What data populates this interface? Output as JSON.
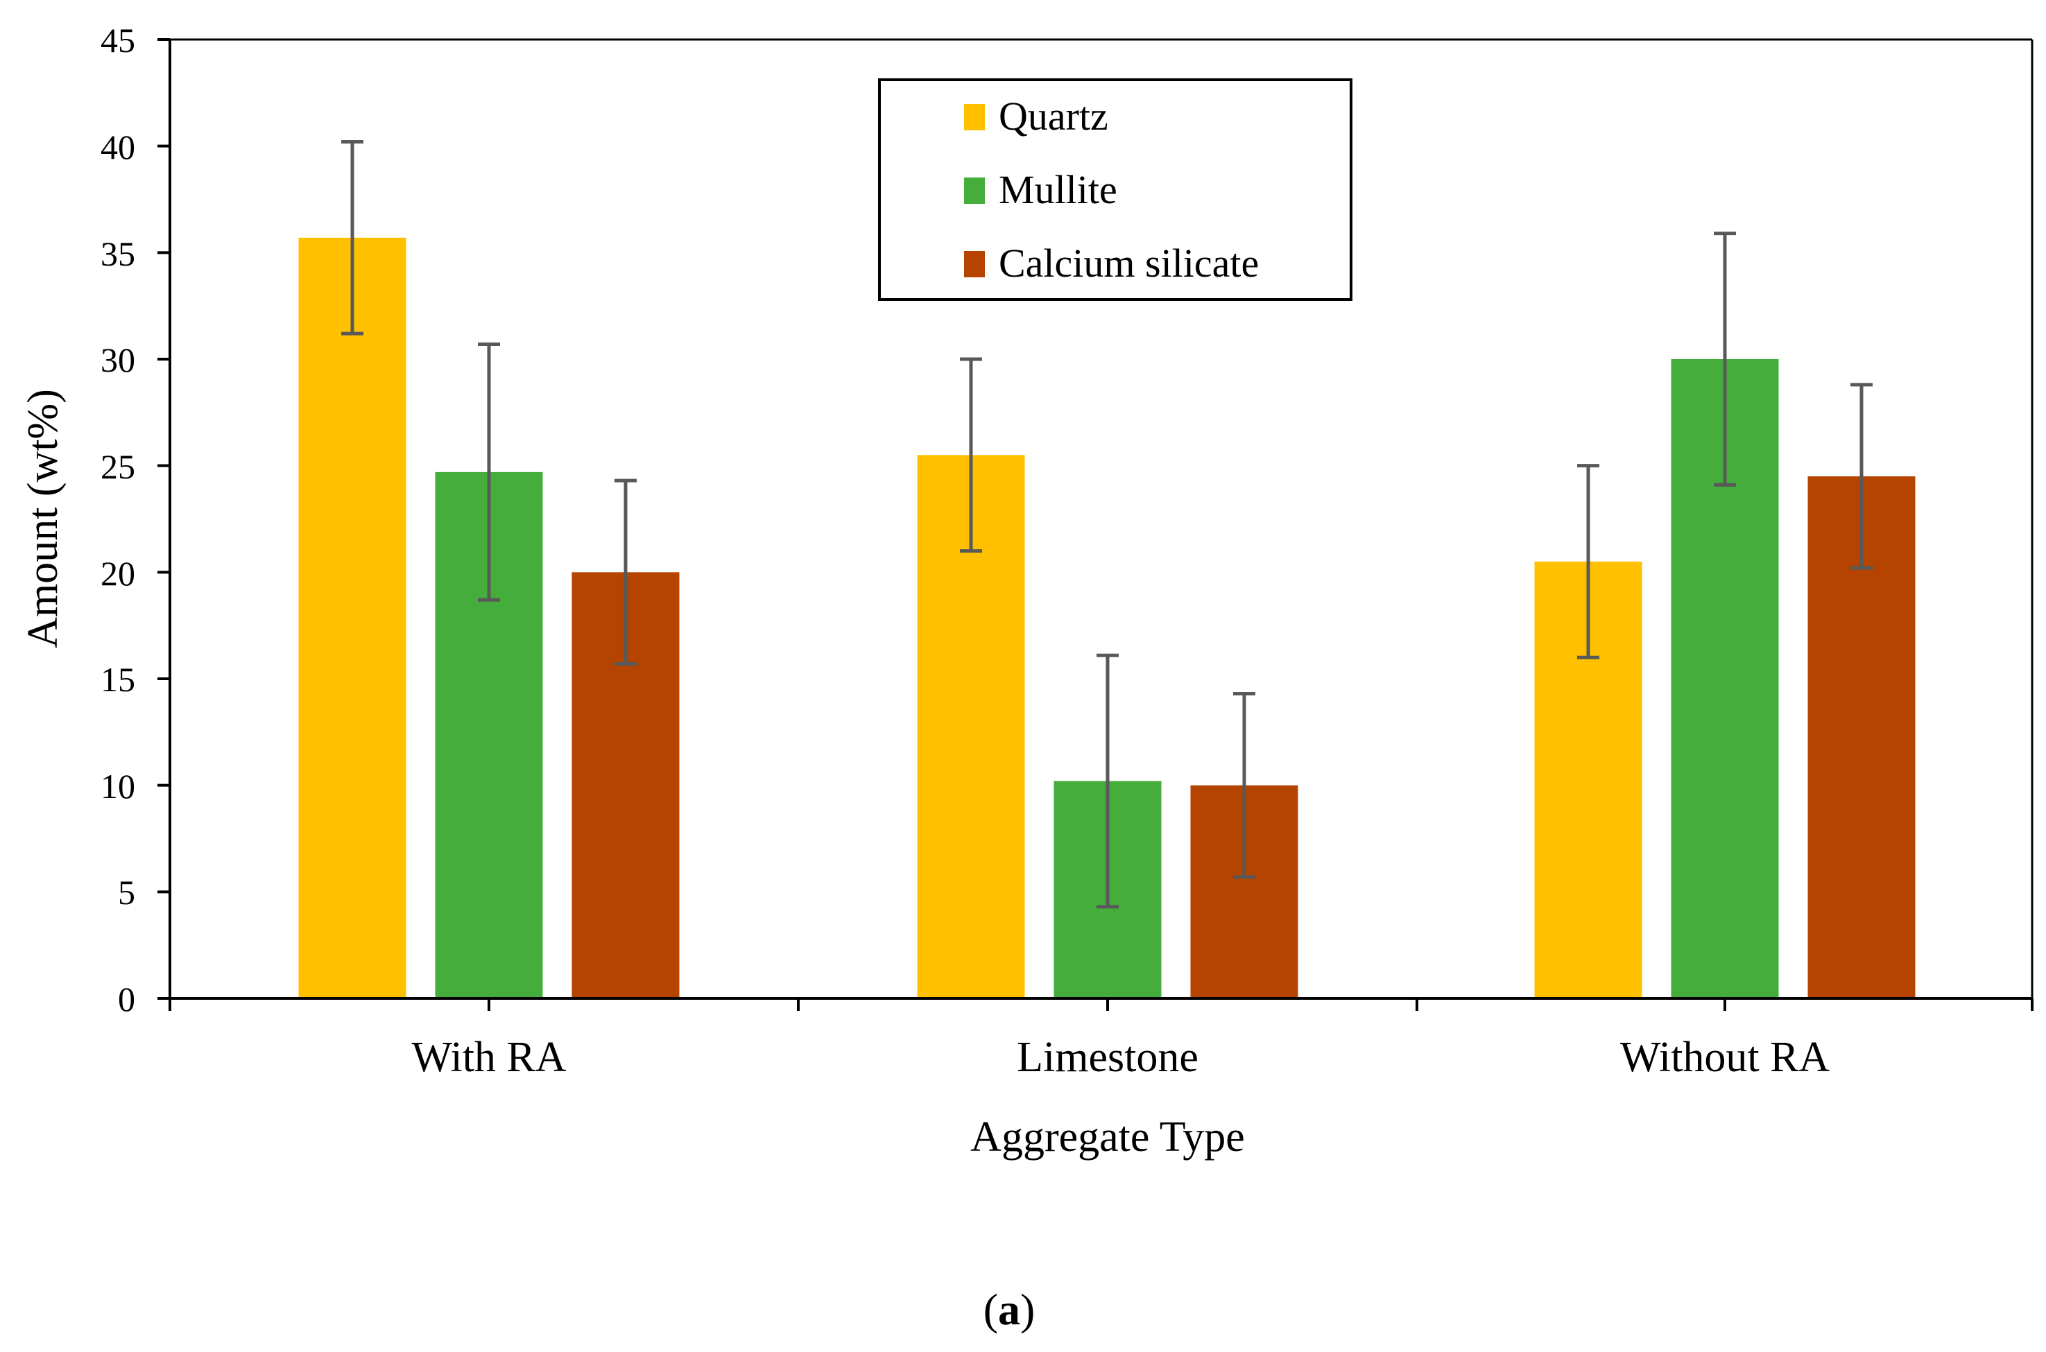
{
  "chart_data": {
    "type": "bar",
    "title": "",
    "xlabel": "Aggregate Type",
    "ylabel": "Amount (wt%)",
    "ylim": [
      0,
      45
    ],
    "yticks": [
      "0",
      "5",
      "10",
      "15",
      "20",
      "25",
      "30",
      "35",
      "40",
      "45"
    ],
    "categories": [
      "With RA",
      "Limestone",
      "Without RA"
    ],
    "series": [
      {
        "name": "Quartz",
        "color": "#FFC000",
        "values": [
          35.7,
          25.5,
          20.5
        ],
        "errors": [
          4.5,
          4.5,
          4.5
        ]
      },
      {
        "name": "Mullite",
        "color": "#44AD3C",
        "values": [
          24.7,
          10.2,
          30.0
        ],
        "errors": [
          6.0,
          5.9,
          5.9
        ]
      },
      {
        "name": "Calcium silicate",
        "color": "#B54400",
        "values": [
          20.0,
          10.0,
          24.5
        ],
        "errors": [
          4.3,
          4.3,
          4.3
        ]
      }
    ],
    "legend_position": "top-center",
    "grid": false,
    "errorbar_color": "#595959"
  },
  "caption": {
    "open": "(",
    "letter": "a",
    "close": ")"
  }
}
